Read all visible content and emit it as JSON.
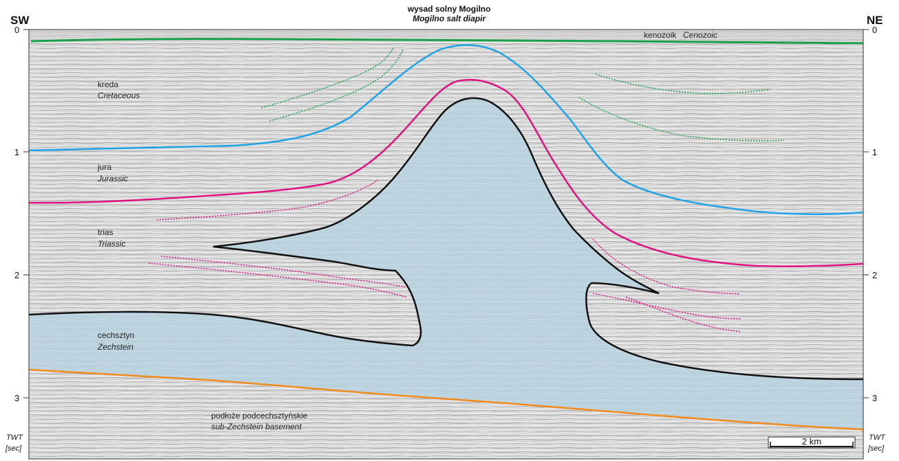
{
  "title": {
    "polish": "wysad solny Mogilno",
    "english": "Mogilno salt diapir"
  },
  "sides": {
    "left": "SW",
    "right": "NE"
  },
  "axis": {
    "ticks": [
      "0",
      "1",
      "2",
      "3"
    ],
    "unit_line1": "TWT",
    "unit_line2": "[sec]"
  },
  "units": {
    "cenozoic": {
      "polish": "kenozoik",
      "english": "Cenozoic"
    },
    "cretaceous": {
      "polish": "kreda",
      "english": "Cretaceous"
    },
    "jurassic": {
      "polish": "jura",
      "english": "Jurassic"
    },
    "triassic": {
      "polish": "trias",
      "english": "Triassic"
    },
    "zechstein": {
      "polish": "cechsztyn",
      "english": "Zechstein"
    },
    "basement": {
      "polish": "podłoże podcechsztyńskie",
      "english": "sub-Zechstein basement"
    }
  },
  "scale_bar": {
    "label": "2 km"
  },
  "colors": {
    "base_cenozoic": "#1aa04a",
    "base_cretaceous": "#1ea3e6",
    "base_jurassic": "#e0137f",
    "salt_outline": "#111111",
    "top_basement": "#f28a1c",
    "salt_fill": "#b9d3df",
    "seismic_bg": "#d6d6d6"
  }
}
